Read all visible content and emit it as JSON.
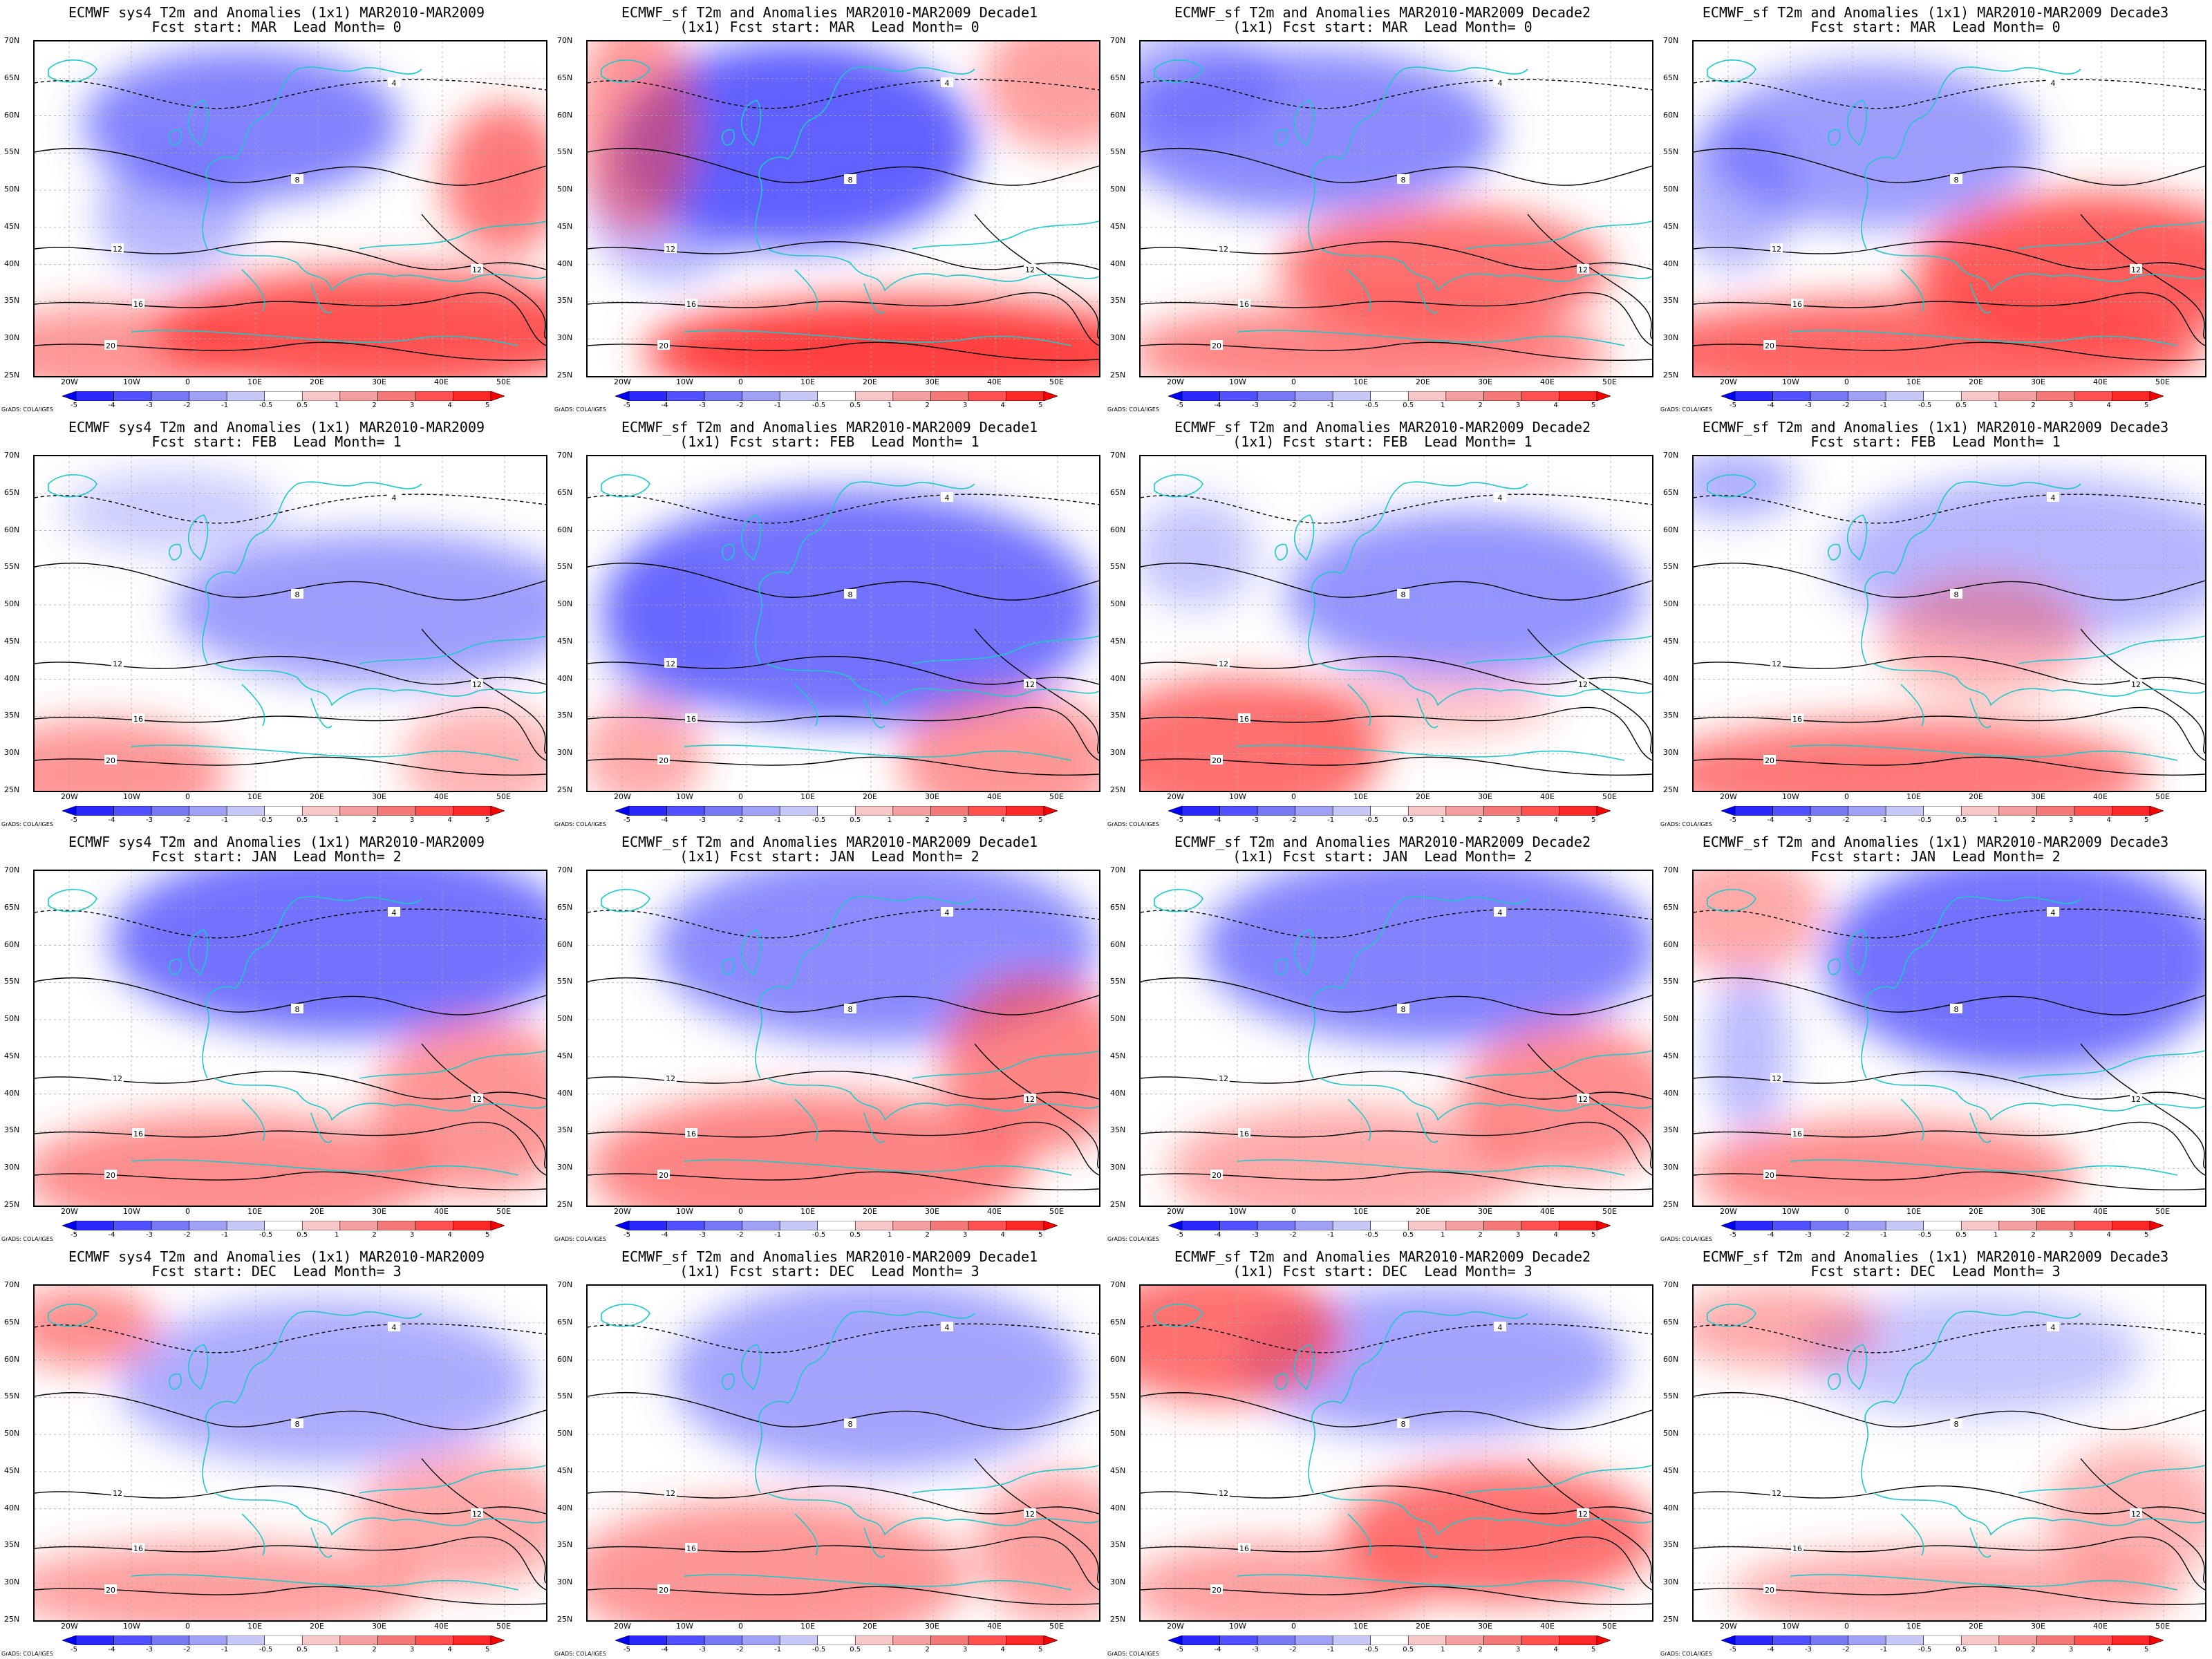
{
  "panels": [
    {
      "title1": "ECMWF sys4 T2m and Anomalies (1x1) MAR2010-MAR2009",
      "title2": "Fcst start: MAR  Lead Month= 0"
    },
    {
      "title1": "ECMWF_sf T2m and Anomalies MAR2010-MAR2009 Decade1",
      "title2": "(1x1) Fcst start: MAR  Lead Month= 0"
    },
    {
      "title1": "ECMWF_sf T2m and Anomalies MAR2010-MAR2009 Decade2",
      "title2": "(1x1) Fcst start: MAR  Lead Month= 0"
    },
    {
      "title1": "ECMWF_sf T2m and Anomalies (1x1) MAR2010-MAR2009 Decade3",
      "title2": "Fcst start: MAR  Lead Month= 0"
    },
    {
      "title1": "ECMWF sys4 T2m and Anomalies (1x1) MAR2010-MAR2009",
      "title2": "Fcst start: FEB  Lead Month= 1"
    },
    {
      "title1": "ECMWF_sf T2m and Anomalies MAR2010-MAR2009 Decade1",
      "title2": "(1x1) Fcst start: FEB  Lead Month= 1"
    },
    {
      "title1": "ECMWF_sf T2m and Anomalies MAR2010-MAR2009 Decade2",
      "title2": "(1x1) Fcst start: FEB  Lead Month= 1"
    },
    {
      "title1": "ECMWF_sf T2m and Anomalies (1x1) MAR2010-MAR2009 Decade3",
      "title2": "Fcst start: FEB  Lead Month= 1"
    },
    {
      "title1": "ECMWF sys4 T2m and Anomalies (1x1) MAR2010-MAR2009",
      "title2": "Fcst start: JAN  Lead Month= 2"
    },
    {
      "title1": "ECMWF_sf T2m and Anomalies MAR2010-MAR2009 Decade1",
      "title2": "(1x1) Fcst start: JAN  Lead Month= 2"
    },
    {
      "title1": "ECMWF_sf T2m and Anomalies MAR2010-MAR2009 Decade2",
      "title2": "(1x1) Fcst start: JAN  Lead Month= 2"
    },
    {
      "title1": "ECMWF_sf T2m and Anomalies (1x1) MAR2010-MAR2009 Decade3",
      "title2": "Fcst start: JAN  Lead Month= 2"
    },
    {
      "title1": "ECMWF sys4 T2m and Anomalies (1x1) MAR2010-MAR2009",
      "title2": "Fcst start: DEC  Lead Month= 3"
    },
    {
      "title1": "ECMWF_sf T2m and Anomalies MAR2010-MAR2009 Decade1",
      "title2": "(1x1) Fcst start: DEC  Lead Month= 3"
    },
    {
      "title1": "ECMWF_sf T2m and Anomalies MAR2010-MAR2009 Decade2",
      "title2": "(1x1) Fcst start: DEC  Lead Month= 3"
    },
    {
      "title1": "ECMWF_sf T2m and Anomalies (1x1) MAR2010-MAR2009 Decade3",
      "title2": "Fcst start: DEC  Lead Month= 3"
    }
  ],
  "lat_labels": [
    "70N",
    "65N",
    "60N",
    "55N",
    "50N",
    "45N",
    "40N",
    "35N",
    "30N",
    "25N"
  ],
  "lon_labels": [
    "20W",
    "10W",
    "0",
    "10E",
    "20E",
    "30E",
    "40E",
    "50E"
  ],
  "colorbar": {
    "labels": [
      "-5",
      "-4",
      "-3",
      "-2",
      "-1",
      "-0.5",
      "0.5",
      "1",
      "2",
      "3",
      "4",
      "5"
    ],
    "colors": [
      "#0000ff",
      "#2828ff",
      "#5050ff",
      "#7878f5",
      "#a0a0f5",
      "#c8c8f8",
      "#ffffff",
      "#f8c8c8",
      "#f5a0a0",
      "#f57878",
      "#ff5050",
      "#ff2828",
      "#ff0000"
    ]
  },
  "credit": "GrADS: COLA/IGES",
  "map_colors": {
    "coast": "#1fc8c8",
    "contour": "#000000",
    "grid": "#aaaaaa"
  }
}
